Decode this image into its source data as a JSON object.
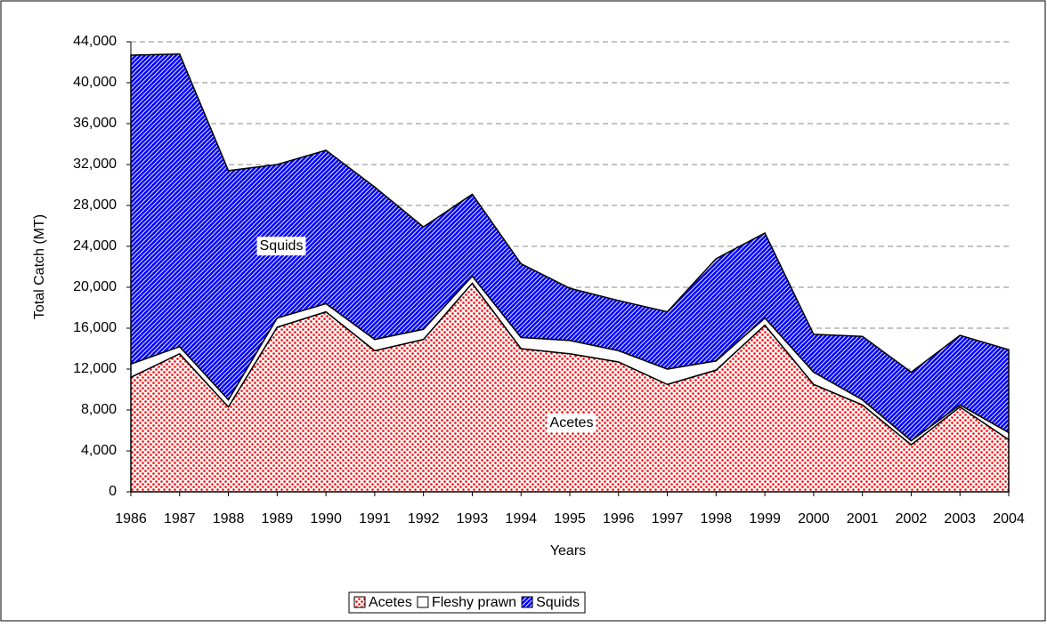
{
  "chart_data": {
    "type": "stacked_area",
    "categories": [
      "1986",
      "1987",
      "1988",
      "1989",
      "1990",
      "1991",
      "1992",
      "1993",
      "1994",
      "1995",
      "1996",
      "1997",
      "1998",
      "1999",
      "2000",
      "2001",
      "2002",
      "2003",
      "2004"
    ],
    "series": [
      {
        "name": "Acetes",
        "color": "#ff0000",
        "values": [
          11200,
          13500,
          8300,
          16100,
          17600,
          13800,
          14900,
          20400,
          14000,
          13500,
          12700,
          10500,
          11900,
          16300,
          10500,
          8500,
          4600,
          8300,
          5100
        ]
      },
      {
        "name": "Fleshy prawn",
        "color": "#ffffff",
        "values": [
          1300,
          700,
          700,
          900,
          800,
          1100,
          1000,
          700,
          1100,
          1300,
          1100,
          1500,
          900,
          700,
          1200,
          500,
          400,
          200,
          700
        ]
      },
      {
        "name": "Squids",
        "color": "#0000ff",
        "values": [
          30200,
          28600,
          22400,
          15000,
          15000,
          14900,
          10000,
          8000,
          7200,
          5100,
          4900,
          5600,
          10000,
          8300,
          3700,
          6200,
          6700,
          6800,
          8100
        ]
      }
    ],
    "ylim": [
      0,
      44000
    ],
    "yticks": [
      0,
      {
        "value": 4000,
        "label": "4,000"
      },
      {
        "value": 8000,
        "label": "8,000"
      },
      {
        "value": 12000,
        "label": "12,000"
      },
      {
        "value": 16000,
        "label": "16,000"
      },
      {
        "value": 20000,
        "label": "20,000"
      },
      {
        "value": 24000,
        "label": "24,000"
      },
      {
        "value": 28000,
        "label": "28,000"
      },
      {
        "value": 32000,
        "label": "32,000"
      },
      {
        "value": 36000,
        "label": "36,000"
      },
      {
        "value": 40000,
        "label": "40,000"
      },
      {
        "value": 44000,
        "label": "44,000"
      }
    ],
    "xlabel": "Years",
    "ylabel": "Total Catch (MT)",
    "annotations": [
      "Squids",
      "Acetes"
    ],
    "grid": true,
    "legend": "bottom"
  }
}
